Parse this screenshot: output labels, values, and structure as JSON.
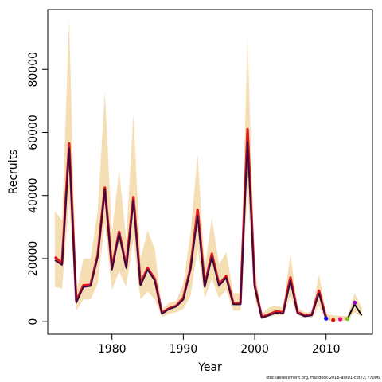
{
  "chart_data": {
    "type": "line",
    "xlabel": "Year",
    "ylabel": "Recruits",
    "xlim": [
      1971,
      2016.5
    ],
    "ylim": [
      -4000,
      99000
    ],
    "x_ticks": [
      1980,
      1990,
      2000,
      2010
    ],
    "y_ticks": [
      0,
      20000,
      40000,
      60000,
      80000
    ],
    "grid": false,
    "band_color": "#f5deb3",
    "band": {
      "x": [
        1972,
        1973,
        1974,
        1975,
        1976,
        1977,
        1978,
        1979,
        1980,
        1981,
        1982,
        1983,
        1984,
        1985,
        1986,
        1987,
        1988,
        1989,
        1990,
        1991,
        1992,
        1993,
        1994,
        1995,
        1996,
        1997,
        1998,
        1999,
        2000,
        2001,
        2002,
        2003,
        2004,
        2005,
        2006,
        2007,
        2008,
        2009,
        2010,
        2011,
        2012,
        2013,
        2014,
        2015
      ],
      "lower": [
        11000,
        10500,
        38000,
        3500,
        7000,
        7000,
        12000,
        31000,
        10000,
        16000,
        11000,
        26000,
        7000,
        9500,
        7000,
        1500,
        2500,
        3000,
        4000,
        8000,
        23000,
        7500,
        13500,
        7500,
        10000,
        3500,
        3500,
        42000,
        7000,
        800,
        1500,
        2000,
        2000,
        8000,
        2000,
        1200,
        1200,
        5000,
        300,
        300,
        300,
        300,
        3000,
        1500
      ],
      "upper": [
        35000,
        32000,
        96000,
        9000,
        20000,
        20000,
        35000,
        73000,
        28000,
        48000,
        26000,
        66000,
        20000,
        29000,
        23000,
        4000,
        6000,
        6500,
        12000,
        28000,
        53000,
        17000,
        33000,
        18000,
        22000,
        9000,
        9000,
        90000,
        17000,
        2500,
        4500,
        5000,
        4500,
        21500,
        4500,
        3000,
        3000,
        15000,
        2500,
        2000,
        1800,
        1800,
        9000,
        4500
      ]
    },
    "series": [
      {
        "color": "#e31a1c",
        "x": [
          1972,
          1973,
          1974,
          1975,
          1976,
          1977,
          1978,
          1979,
          1980,
          1981,
          1982,
          1983,
          1984,
          1985,
          1986,
          1987,
          1988,
          1989,
          1990,
          1991,
          1992,
          1993,
          1994,
          1995,
          1996,
          1997,
          1998,
          1999,
          2000,
          2001,
          2002,
          2003,
          2004,
          2005,
          2006,
          2007,
          2008,
          2009,
          2010
        ],
        "values": [
          20500,
          18500,
          56500,
          6500,
          11500,
          11700,
          21000,
          42500,
          17000,
          28500,
          17500,
          39500,
          12000,
          17000,
          13500,
          2800,
          4200,
          5000,
          7500,
          17000,
          35500,
          11500,
          21500,
          11800,
          14500,
          5800,
          5800,
          61000,
          11500,
          1400,
          2300,
          3200,
          3000,
          14000,
          3000,
          2000,
          2200,
          9800,
          1200
        ]
      },
      {
        "color": "#3b0a45",
        "x": [
          1972,
          1973,
          1974,
          1975,
          1976,
          1977,
          1978,
          1979,
          1980,
          1981,
          1982,
          1983,
          1984,
          1985,
          1986,
          1987,
          1988,
          1989,
          1990,
          1991,
          1992,
          1993,
          1994,
          1995,
          1996,
          1997,
          1998,
          1999,
          2000,
          2001,
          2002,
          2003,
          2004,
          2005,
          2006,
          2007,
          2008,
          2009,
          2010
        ],
        "values": [
          19500,
          18000,
          55000,
          6000,
          11000,
          11300,
          20500,
          42000,
          16500,
          28000,
          17000,
          38500,
          11500,
          16500,
          13000,
          2500,
          4000,
          4800,
          7000,
          16500,
          33500,
          11000,
          20500,
          11300,
          14000,
          5500,
          5500,
          57000,
          11000,
          1200,
          2000,
          2800,
          2600,
          13000,
          2700,
          1700,
          2000,
          9000,
          900
        ]
      },
      {
        "color": "#000000",
        "x": [
          2013,
          2014,
          2015
        ],
        "values": [
          900,
          5500,
          2000
        ]
      }
    ],
    "points": [
      {
        "x": 2010,
        "y": 1000,
        "color": "#0000ff"
      },
      {
        "x": 2011,
        "y": 500,
        "color": "#e31a1c"
      },
      {
        "x": 2012,
        "y": 800,
        "color": "#e6007e"
      },
      {
        "x": 2013,
        "y": 900,
        "color": "#7ac70c"
      },
      {
        "x": 2014,
        "y": 6000,
        "color": "#8a00c2"
      }
    ]
  },
  "footer": "stockassessment.org, Haddock-2016-ass01-cut72, r7006"
}
